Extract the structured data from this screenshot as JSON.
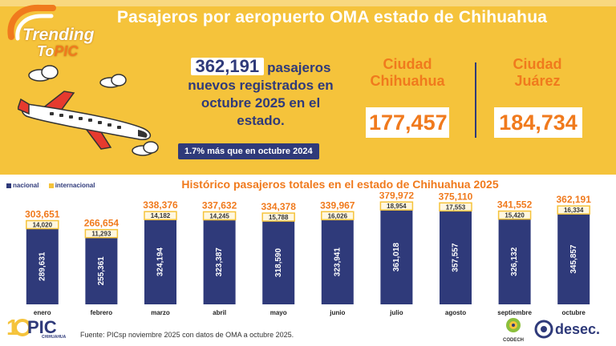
{
  "header": {
    "title": "Pasajeros por aeropuerto OMA estado de Chihuahua",
    "logo_word1": "Trending",
    "logo_word2_a": "To",
    "logo_word2_b": "PIC"
  },
  "summary": {
    "total_value": "362,191",
    "total_line1_rest": "pasajeros",
    "total_line2": "nuevos registrados en",
    "total_line3": "octubre 2025 en el",
    "total_line4": "estado.",
    "pct_note": "1.7% más que en octubre 2024"
  },
  "cities": [
    {
      "name_line1": "Ciudad",
      "name_line2": "Chihuahua",
      "value": "177,457"
    },
    {
      "name_line1": "Ciudad",
      "name_line2": "Juárez",
      "value": "184,734"
    }
  ],
  "legend": {
    "nacional": "nacional",
    "internacional": "internacional"
  },
  "footer": {
    "source": "Fuente:  PICsp noviembre 2025 con datos de OMA a octubre 2025.",
    "logo_text": "PIC",
    "logo_sub": "CHIHUAHUA",
    "partner1": "CODECH",
    "partner2": "desec."
  },
  "colors": {
    "yellow": "#f5c33b",
    "navy": "#2f3a7a",
    "orange": "#f07a1d"
  },
  "chart_data": {
    "type": "bar",
    "stacked": true,
    "title": "Histórico pasajeros totales en el estado de Chihuahua 2025",
    "categories": [
      "enero",
      "febrero",
      "marzo",
      "abril",
      "mayo",
      "junio",
      "julio",
      "agosto",
      "septiembre",
      "octubre"
    ],
    "series": [
      {
        "name": "nacional",
        "values": [
          289631,
          255361,
          324194,
          323387,
          318590,
          323941,
          361018,
          357557,
          326132,
          345857
        ],
        "labels": [
          "289,631",
          "255,361",
          "324,194",
          "323,387",
          "318,590",
          "323,941",
          "361,018",
          "357,557",
          "326,132",
          "345,857"
        ]
      },
      {
        "name": "internacional",
        "values": [
          14020,
          11293,
          14182,
          14245,
          15788,
          16026,
          18954,
          17553,
          15420,
          16334
        ],
        "labels": [
          "14,020",
          "11,293",
          "14,182",
          "14,245",
          "15,788",
          "16,026",
          "18,954",
          "17,553",
          "15,420",
          "16,334"
        ]
      }
    ],
    "totals": [
      303651,
      266654,
      338376,
      337632,
      334378,
      339967,
      379972,
      375110,
      341552,
      362191
    ],
    "total_labels": [
      "303,651",
      "266,654",
      "338,376",
      "337,632",
      "334,378",
      "339,967",
      "379,972",
      "375,110",
      "341,552",
      "362,191"
    ],
    "ylim": [
      0,
      380000
    ],
    "xlabel": "",
    "ylabel": "",
    "legend": "top-left",
    "grid": false
  }
}
